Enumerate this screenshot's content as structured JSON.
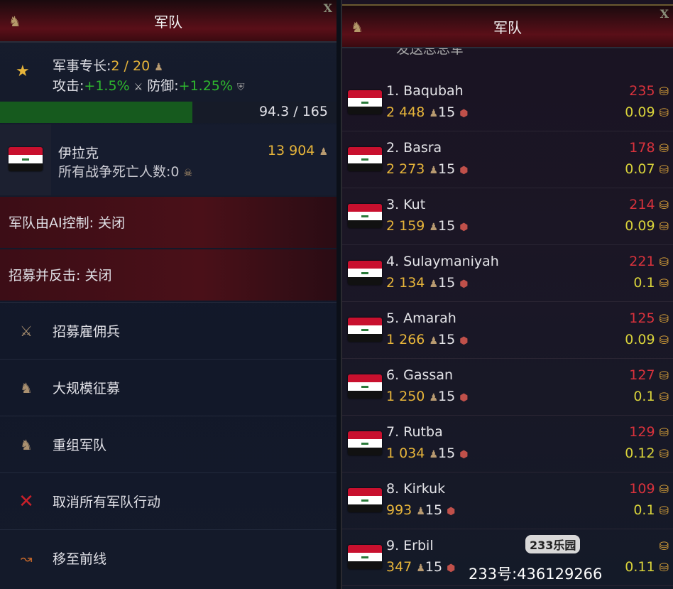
{
  "left": {
    "title": "军队",
    "close": "X",
    "expertise_label": "军事专长:",
    "expertise_value": "2 / 20",
    "attack_label": "攻击:",
    "attack_value": "+1.5%",
    "defense_label": "防御:",
    "defense_value": "+1.25%",
    "progress_text": "94.3 / 165",
    "progress_fraction": 0.5715,
    "country": "伊拉克",
    "deaths_label": "所有战争死亡人数:",
    "deaths_value": "0",
    "troops": "13 904",
    "ai_control": "军队由AI控制: 关闭",
    "recruit_counter": "招募并反击: 关闭",
    "menu": [
      {
        "label": "招募雇佣兵",
        "icon": "crossed-swords-icon"
      },
      {
        "label": "大规模征募",
        "icon": "soldier-icon"
      },
      {
        "label": "重组军队",
        "icon": "soldier-icon"
      },
      {
        "label": "取消所有军队行动",
        "icon": "red-x-icon"
      },
      {
        "label": "移至前线",
        "icon": "arrow-path-icon"
      }
    ]
  },
  "right": {
    "title": "军队",
    "close": "X",
    "partial_item": "发送总总军",
    "rows": [
      {
        "name": "1. Baqubah",
        "troops": "2 448",
        "level": "15",
        "cost": "235",
        "upkeep": "0.09"
      },
      {
        "name": "2. Basra",
        "troops": "2 273",
        "level": "15",
        "cost": "178",
        "upkeep": "0.07"
      },
      {
        "name": "3. Kut",
        "troops": "2 159",
        "level": "15",
        "cost": "214",
        "upkeep": "0.09"
      },
      {
        "name": "4. Sulaymaniyah",
        "troops": "2 134",
        "level": "15",
        "cost": "221",
        "upkeep": "0.1"
      },
      {
        "name": "5. Amarah",
        "troops": "1 266",
        "level": "15",
        "cost": "125",
        "upkeep": "0.09"
      },
      {
        "name": "6. Gassan",
        "troops": "1 250",
        "level": "15",
        "cost": "127",
        "upkeep": "0.1"
      },
      {
        "name": "7. Rutba",
        "troops": "1 034",
        "level": "15",
        "cost": "129",
        "upkeep": "0.12"
      },
      {
        "name": "8. Kirkuk",
        "troops": "993",
        "level": "15",
        "cost": "109",
        "upkeep": "0.1"
      },
      {
        "name": "9. Erbil",
        "troops": "347",
        "level": "15",
        "cost": "",
        "upkeep": "0.11"
      }
    ]
  },
  "watermark": {
    "logo": "233乐园",
    "id_text": "233号:436129266"
  }
}
